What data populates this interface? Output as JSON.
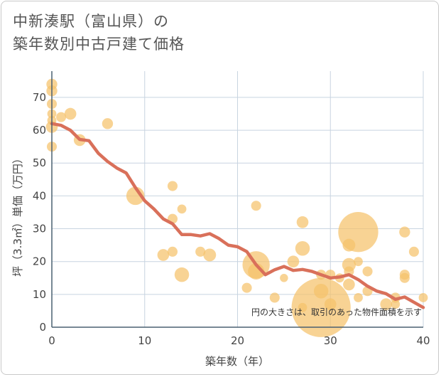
{
  "chart_data": {
    "type": "scatter",
    "title_line1": "中新湊駅（富山県）の",
    "title_line2": "築年数別中古戸建て価格",
    "xlabel": "築年数（年）",
    "ylabel": "坪（3.3㎡）単価（万円）",
    "xlim": [
      0,
      40
    ],
    "ylim": [
      0,
      78
    ],
    "xticks": [
      0,
      10,
      20,
      30,
      40
    ],
    "yticks": [
      0,
      10,
      20,
      30,
      40,
      50,
      60,
      70
    ],
    "note": "円の大きさは、取引のあった物件面積を示す",
    "colors": {
      "bubble": "#f5c26b",
      "line": "#d9705a",
      "grid": "#c8d4e0",
      "axis": "#4a6070"
    },
    "points": [
      {
        "x": 0,
        "y": 74,
        "s": 1.2
      },
      {
        "x": 0,
        "y": 72,
        "s": 1.2
      },
      {
        "x": 0,
        "y": 68,
        "s": 1.1
      },
      {
        "x": 0,
        "y": 65,
        "s": 1
      },
      {
        "x": 0,
        "y": 63,
        "s": 1
      },
      {
        "x": 0,
        "y": 61,
        "s": 1.3
      },
      {
        "x": 0,
        "y": 55,
        "s": 1.1
      },
      {
        "x": 1,
        "y": 64,
        "s": 1.1
      },
      {
        "x": 2,
        "y": 65,
        "s": 1.3
      },
      {
        "x": 3,
        "y": 57,
        "s": 1.3
      },
      {
        "x": 6,
        "y": 62,
        "s": 1.2
      },
      {
        "x": 9,
        "y": 40,
        "s": 2
      },
      {
        "x": 13,
        "y": 43,
        "s": 1.1
      },
      {
        "x": 13,
        "y": 33,
        "s": 1.1
      },
      {
        "x": 14,
        "y": 36,
        "s": 1
      },
      {
        "x": 12,
        "y": 22,
        "s": 1.3
      },
      {
        "x": 13,
        "y": 23,
        "s": 1.1
      },
      {
        "x": 14,
        "y": 16,
        "s": 1.6
      },
      {
        "x": 16,
        "y": 23,
        "s": 1.1
      },
      {
        "x": 17,
        "y": 22,
        "s": 1.4
      },
      {
        "x": 22,
        "y": 37,
        "s": 1.1
      },
      {
        "x": 22,
        "y": 19,
        "s": 3
      },
      {
        "x": 22,
        "y": 17,
        "s": 1.8
      },
      {
        "x": 21,
        "y": 12,
        "s": 1.1
      },
      {
        "x": 24,
        "y": 9,
        "s": 1.1
      },
      {
        "x": 25,
        "y": 15,
        "s": 0.9
      },
      {
        "x": 26,
        "y": 20,
        "s": 1.3
      },
      {
        "x": 27,
        "y": 32,
        "s": 1.3
      },
      {
        "x": 27,
        "y": 24,
        "s": 1.6
      },
      {
        "x": 27,
        "y": 6,
        "s": 1
      },
      {
        "x": 29,
        "y": 16,
        "s": 1.1
      },
      {
        "x": 29,
        "y": 11,
        "s": 1.6
      },
      {
        "x": 29,
        "y": 6,
        "s": 6.5
      },
      {
        "x": 30,
        "y": 16,
        "s": 1.1
      },
      {
        "x": 30,
        "y": 7,
        "s": 1.3
      },
      {
        "x": 31,
        "y": 15,
        "s": 1
      },
      {
        "x": 32,
        "y": 25,
        "s": 1.4
      },
      {
        "x": 32,
        "y": 19,
        "s": 1.5
      },
      {
        "x": 32,
        "y": 17,
        "s": 1.1
      },
      {
        "x": 32,
        "y": 13,
        "s": 1.3
      },
      {
        "x": 33,
        "y": 29,
        "s": 4.4
      },
      {
        "x": 33,
        "y": 20,
        "s": 1
      },
      {
        "x": 33,
        "y": 9,
        "s": 1
      },
      {
        "x": 34,
        "y": 17,
        "s": 1.1
      },
      {
        "x": 34,
        "y": 11,
        "s": 1.1
      },
      {
        "x": 36,
        "y": 7,
        "s": 1.3
      },
      {
        "x": 37,
        "y": 9,
        "s": 1.1
      },
      {
        "x": 37,
        "y": 7,
        "s": 1
      },
      {
        "x": 38,
        "y": 29,
        "s": 1.2
      },
      {
        "x": 38,
        "y": 16,
        "s": 1.1
      },
      {
        "x": 38,
        "y": 15,
        "s": 1.1
      },
      {
        "x": 39,
        "y": 23,
        "s": 1.1
      },
      {
        "x": 40,
        "y": 9,
        "s": 1
      }
    ],
    "trend": [
      {
        "x": 0,
        "y": 62
      },
      {
        "x": 1,
        "y": 61.5
      },
      {
        "x": 2,
        "y": 60
      },
      {
        "x": 3,
        "y": 57.2
      },
      {
        "x": 4,
        "y": 56.8
      },
      {
        "x": 5,
        "y": 53
      },
      {
        "x": 6,
        "y": 50.5
      },
      {
        "x": 7,
        "y": 48.5
      },
      {
        "x": 8,
        "y": 47
      },
      {
        "x": 9,
        "y": 42.5
      },
      {
        "x": 10,
        "y": 38.5
      },
      {
        "x": 11,
        "y": 36
      },
      {
        "x": 12,
        "y": 33
      },
      {
        "x": 13,
        "y": 31.5
      },
      {
        "x": 14,
        "y": 28.2
      },
      {
        "x": 15,
        "y": 28.2
      },
      {
        "x": 16,
        "y": 27.8
      },
      {
        "x": 17,
        "y": 28.5
      },
      {
        "x": 18,
        "y": 27
      },
      {
        "x": 19,
        "y": 25
      },
      {
        "x": 20,
        "y": 24.5
      },
      {
        "x": 21,
        "y": 23
      },
      {
        "x": 22,
        "y": 19
      },
      {
        "x": 23,
        "y": 16
      },
      {
        "x": 24,
        "y": 17.5
      },
      {
        "x": 25,
        "y": 18.5
      },
      {
        "x": 26,
        "y": 17.3
      },
      {
        "x": 27,
        "y": 17.6
      },
      {
        "x": 28,
        "y": 17
      },
      {
        "x": 29,
        "y": 16
      },
      {
        "x": 30,
        "y": 15
      },
      {
        "x": 31,
        "y": 15.3
      },
      {
        "x": 32,
        "y": 16
      },
      {
        "x": 33,
        "y": 14.5
      },
      {
        "x": 34,
        "y": 12.5
      },
      {
        "x": 35,
        "y": 11
      },
      {
        "x": 36,
        "y": 10.2
      },
      {
        "x": 37,
        "y": 8.5
      },
      {
        "x": 38,
        "y": 9.2
      },
      {
        "x": 39,
        "y": 7.6
      },
      {
        "x": 40,
        "y": 6
      }
    ]
  }
}
